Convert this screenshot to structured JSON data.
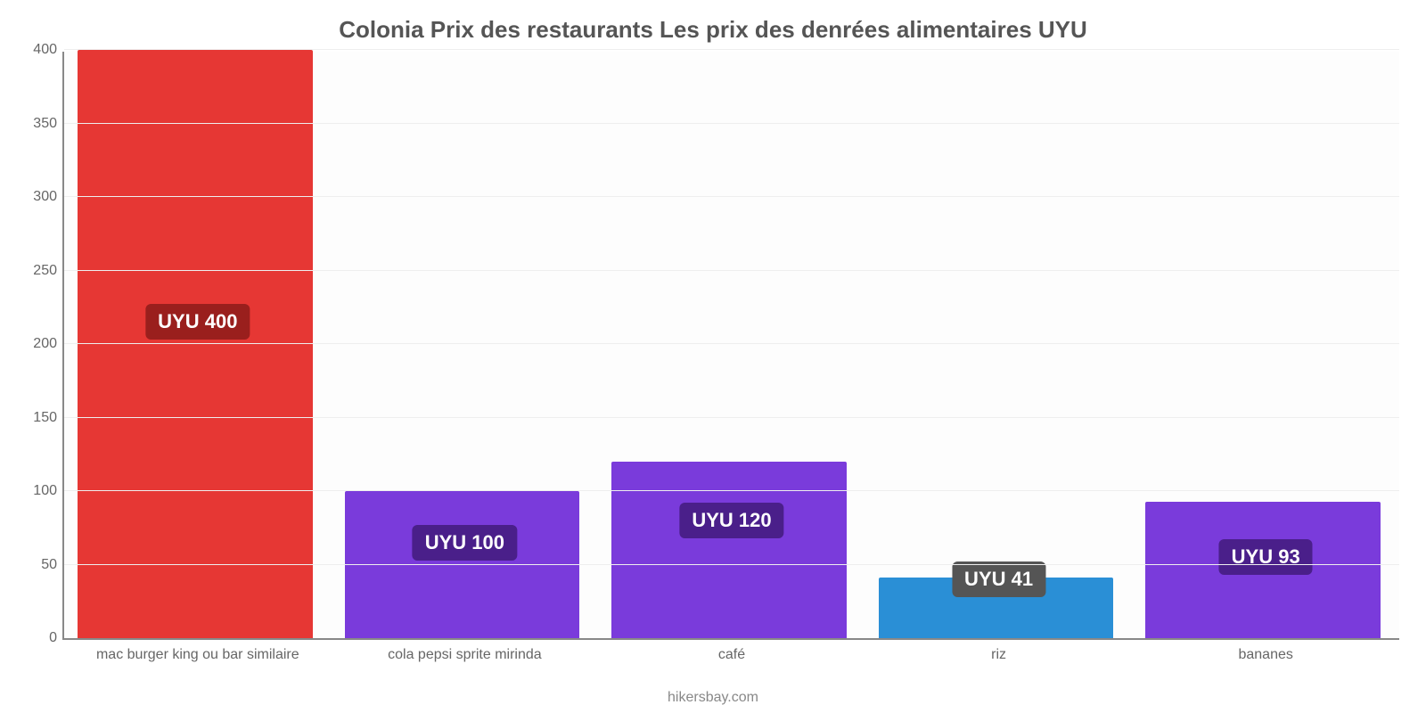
{
  "chart": {
    "type": "bar",
    "title": "Colonia Prix des restaurants Les prix des denrées alimentaires UYU",
    "title_fontsize": 26,
    "title_color": "#555555",
    "source_label": "hikersbay.com",
    "source_fontsize": 16,
    "source_color": "#888888",
    "background_color": "#ffffff",
    "plot_background": "#fdfdfd",
    "grid_color": "#eeeeee",
    "axis_color": "#888888",
    "ylim": [
      0,
      400
    ],
    "ytick_step": 50,
    "yticks": [
      0,
      50,
      100,
      150,
      200,
      250,
      300,
      350,
      400
    ],
    "ytick_fontsize": 16,
    "ytick_color": "#666666",
    "xlabel_fontsize": 16,
    "xlabel_color": "#666666",
    "bar_width_pct": 88,
    "bar_left_pct": 5,
    "badge_fontsize": 22,
    "categories": [
      "mac burger king ou bar similaire",
      "cola pepsi sprite mirinda",
      "café",
      "riz",
      "bananes"
    ],
    "values": [
      400,
      100,
      120,
      41,
      93
    ],
    "value_labels": [
      "UYU 400",
      "UYU 100",
      "UYU 120",
      "UYU 41",
      "UYU 93"
    ],
    "bar_colors": [
      "#e63734",
      "#7a3bdb",
      "#7a3bdb",
      "#2a8fd6",
      "#7a3bdb"
    ],
    "badge_bg_colors": [
      "#9a1f1d",
      "#4a1f8a",
      "#4a1f8a",
      "#555555",
      "#4a1f8a"
    ],
    "badge_text_color": "#ffffff",
    "badge_y_values": [
      215,
      65,
      80,
      40,
      55
    ]
  }
}
